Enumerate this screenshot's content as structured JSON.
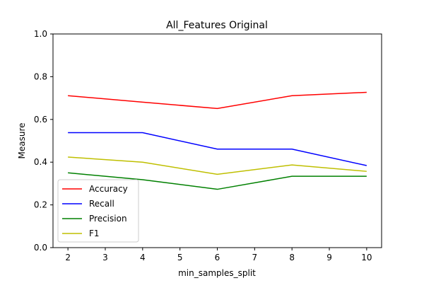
{
  "chart_data": {
    "type": "line",
    "title": "All_Features Original",
    "xlabel": "min_samples_split",
    "ylabel": "Measure",
    "x": [
      2,
      4,
      6,
      8,
      10
    ],
    "xlim": [
      1.6,
      10.4
    ],
    "ylim": [
      0.0,
      1.0
    ],
    "xticks": [
      "2",
      "3",
      "4",
      "5",
      "6",
      "7",
      "8",
      "9",
      "10"
    ],
    "yticks": [
      "0.0",
      "0.2",
      "0.4",
      "0.6",
      "0.8",
      "1.0"
    ],
    "grid": false,
    "legend_position": "lower-left",
    "series": [
      {
        "name": "Accuracy",
        "color": "#ff0000",
        "values": [
          0.711,
          0.681,
          0.651,
          0.711,
          0.727
        ]
      },
      {
        "name": "Recall",
        "color": "#0000ff",
        "values": [
          0.538,
          0.538,
          0.461,
          0.461,
          0.384
        ]
      },
      {
        "name": "Precision",
        "color": "#008000",
        "values": [
          0.35,
          0.318,
          0.273,
          0.334,
          0.334
        ]
      },
      {
        "name": "F1",
        "color": "#bfbf00",
        "values": [
          0.424,
          0.4,
          0.343,
          0.387,
          0.357
        ]
      }
    ]
  }
}
